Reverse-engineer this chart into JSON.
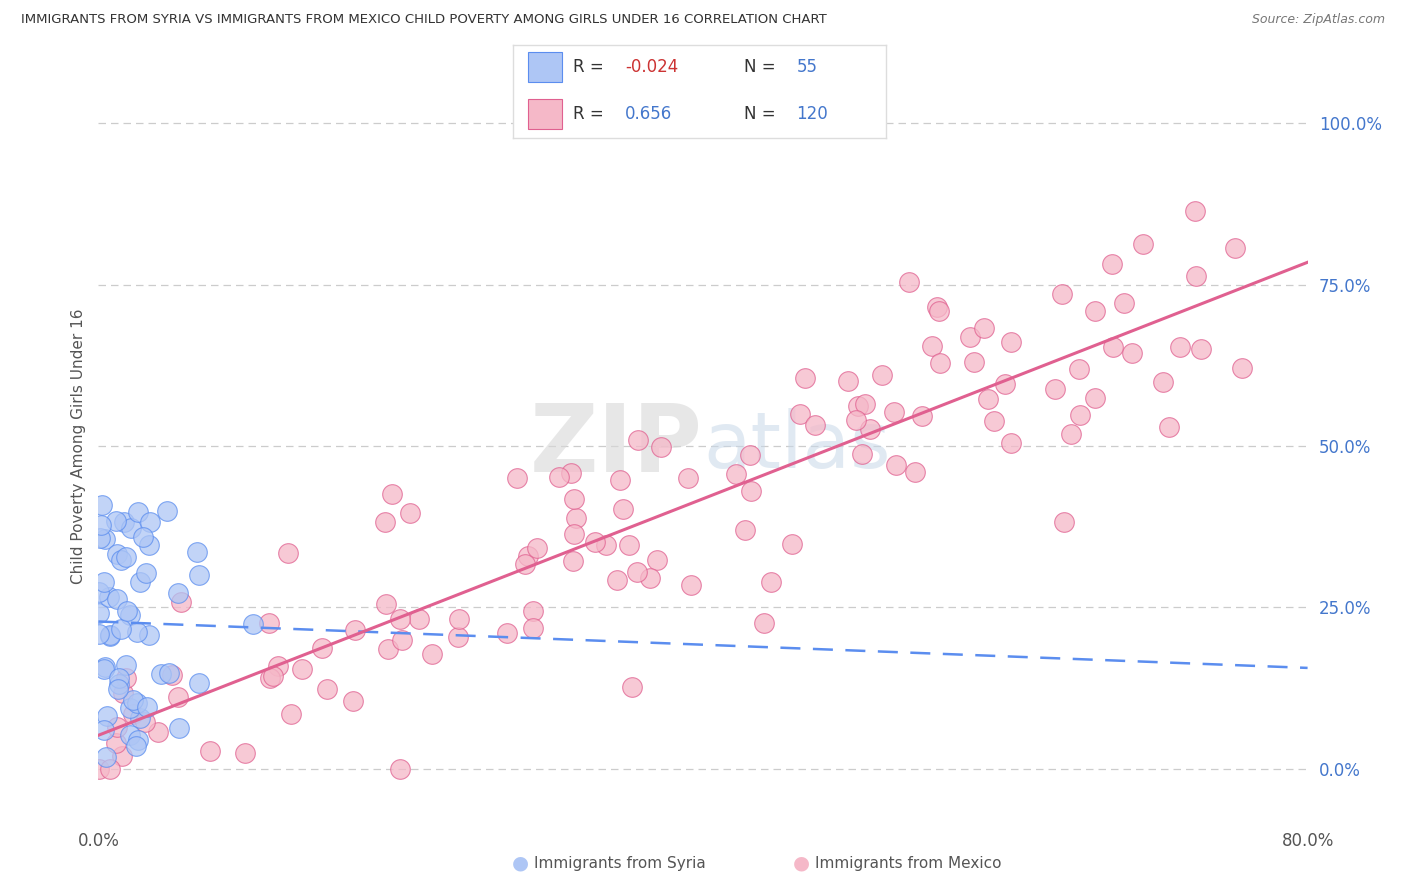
{
  "title": "IMMIGRANTS FROM SYRIA VS IMMIGRANTS FROM MEXICO CHILD POVERTY AMONG GIRLS UNDER 16 CORRELATION CHART",
  "source": "Source: ZipAtlas.com",
  "ylabel": "Child Poverty Among Girls Under 16",
  "ytick_labels": [
    "0.0%",
    "25.0%",
    "50.0%",
    "75.0%",
    "100.0%"
  ],
  "ytick_values": [
    0.0,
    0.25,
    0.5,
    0.75,
    1.0
  ],
  "xlim": [
    0.0,
    0.8
  ],
  "ylim": [
    -0.08,
    1.08
  ],
  "syria_color": "#aec6f5",
  "syria_edge_color": "#5b8def",
  "mexico_color": "#f5b8c8",
  "mexico_edge_color": "#e06090",
  "regression_syria_color": "#5b8def",
  "regression_mexico_color": "#e06090",
  "syria_R": -0.024,
  "syria_N": 55,
  "mexico_R": 0.656,
  "mexico_N": 120,
  "legend_label_color": "#4477cc",
  "legend_r_negative_color": "#cc3333",
  "legend_r_positive_color": "#4477cc",
  "legend_syria_label": "Immigrants from Syria",
  "legend_mexico_label": "Immigrants from Mexico",
  "watermark_zip": "ZIP",
  "watermark_atlas": "atlas",
  "background_color": "#ffffff",
  "grid_color": "#cccccc",
  "title_color": "#333333",
  "source_color": "#777777",
  "ylabel_color": "#555555",
  "xtick_color": "#555555",
  "ytick_color": "#4477cc"
}
